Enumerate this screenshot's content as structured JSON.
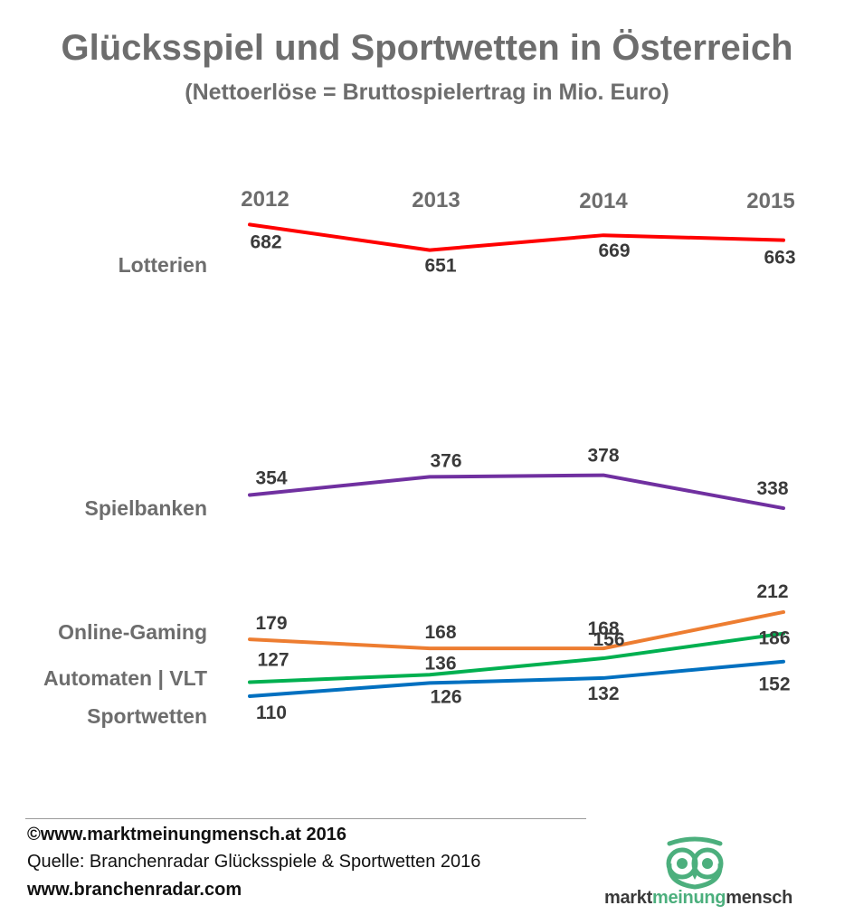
{
  "title": "Glücksspiel und Sportwetten in Österreich",
  "subtitle": "(Nettoerlöse = Bruttospielertrag in Mio. Euro)",
  "chart_data": {
    "type": "line",
    "x": [
      "2012",
      "2013",
      "2014",
      "2015"
    ],
    "series": [
      {
        "name": "Lotterien",
        "values": [
          682,
          651,
          669,
          663
        ],
        "color": "#ff0000"
      },
      {
        "name": "Spielbanken",
        "values": [
          354,
          376,
          378,
          338
        ],
        "color": "#7030a0"
      },
      {
        "name": "Online-Gaming",
        "values": [
          179,
          168,
          168,
          212
        ],
        "color": "#ed7d31"
      },
      {
        "name": "Automaten | VLT",
        "values": [
          127,
          136,
          156,
          186
        ],
        "color": "#00b050"
      },
      {
        "name": "Sportwetten",
        "values": [
          110,
          126,
          132,
          152
        ],
        "color": "#0070c0"
      }
    ],
    "grid": false,
    "legend": "left"
  },
  "footer": {
    "copyright": "©www.marktmeinungmensch.at 2016",
    "source": "Quelle: Branchenradar Glücksspiele & Sportwetten 2016",
    "website": "www.branchenradar.com"
  },
  "logo": {
    "part1": "markt",
    "part2": "meinung",
    "part3": "mensch",
    "color_dark": "#3a3a3a",
    "color_green": "#4caf7d"
  }
}
